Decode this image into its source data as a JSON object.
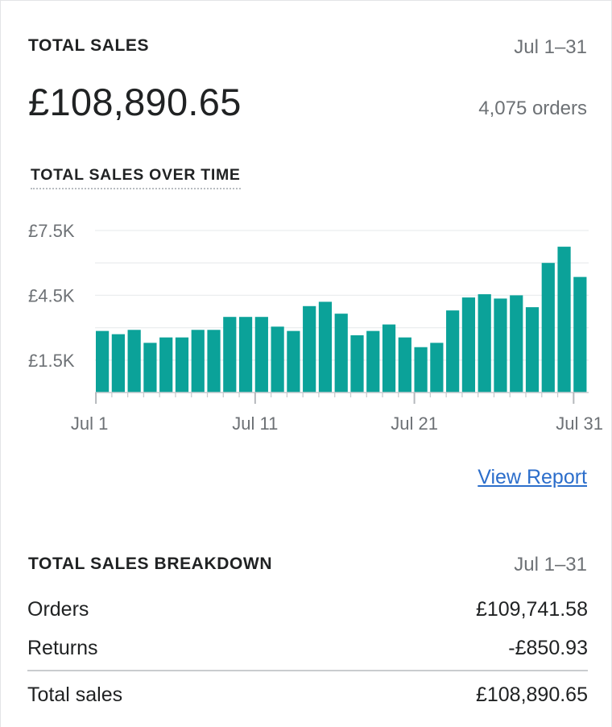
{
  "summary": {
    "title": "TOTAL SALES",
    "date_range": "Jul 1–31",
    "amount": "£108,890.65",
    "orders": "4,075 orders",
    "chart_title": "TOTAL SALES OVER TIME",
    "view_report": "View Report"
  },
  "colors": {
    "bar": "#0ba299",
    "link": "#2c6ecb",
    "muted": "#6d7175"
  },
  "chart_data": {
    "type": "bar",
    "title": "TOTAL SALES OVER TIME",
    "categories": [
      "Jul 1",
      "Jul 2",
      "Jul 3",
      "Jul 4",
      "Jul 5",
      "Jul 6",
      "Jul 7",
      "Jul 8",
      "Jul 9",
      "Jul 10",
      "Jul 11",
      "Jul 12",
      "Jul 13",
      "Jul 14",
      "Jul 15",
      "Jul 16",
      "Jul 17",
      "Jul 18",
      "Jul 19",
      "Jul 20",
      "Jul 21",
      "Jul 22",
      "Jul 23",
      "Jul 24",
      "Jul 25",
      "Jul 26",
      "Jul 27",
      "Jul 28",
      "Jul 29",
      "Jul 30",
      "Jul 31"
    ],
    "values": [
      2850,
      2700,
      2900,
      2300,
      2550,
      2550,
      2900,
      2900,
      3500,
      3500,
      3500,
      3050,
      2850,
      4000,
      4200,
      3650,
      2650,
      2850,
      3150,
      2550,
      2100,
      2300,
      3800,
      4400,
      4550,
      4350,
      4500,
      3950,
      6000,
      6750,
      5350
    ],
    "x_tick_labels": [
      "Jul 1",
      "Jul 11",
      "Jul 21",
      "Jul 31"
    ],
    "y_tick_labels": [
      "£7.5K",
      "£4.5K",
      "£1.5K"
    ],
    "y_ticks": [
      7500,
      4500,
      1500
    ],
    "ylim": [
      0,
      7500
    ],
    "grid": true
  },
  "breakdown": {
    "title": "TOTAL SALES BREAKDOWN",
    "date_range": "Jul 1–31",
    "rows": [
      {
        "label": "Orders",
        "value": "£109,741.58"
      },
      {
        "label": "Returns",
        "value": "-£850.93"
      }
    ],
    "total": {
      "label": "Total sales",
      "value": "£108,890.65"
    }
  }
}
